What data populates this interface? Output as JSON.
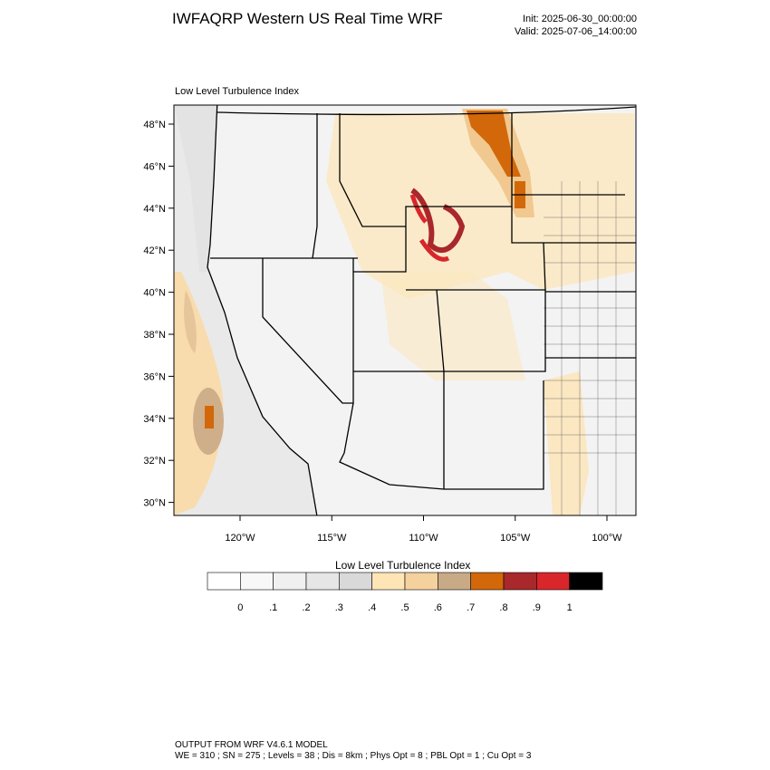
{
  "header": {
    "title": "IWFAQRP Western US Real Time WRF",
    "init": "Init: 2025-06-30_00:00:00",
    "valid": "Valid: 2025-07-06_14:00:00"
  },
  "map": {
    "title": "Low Level Turbulence Index",
    "lat_labels": [
      "48°N",
      "46°N",
      "44°N",
      "42°N",
      "40°N",
      "38°N",
      "36°N",
      "34°N",
      "32°N",
      "30°N"
    ],
    "lon_labels": [
      "120°W",
      "115°W",
      "110°W",
      "105°W",
      "100°W"
    ]
  },
  "colorbar": {
    "title": "Low Level Turbulence Index",
    "colors": [
      "#ffffff",
      "#f8f8f8",
      "#f0f0f0",
      "#e6e6e6",
      "#d9d9d9",
      "#fee5b6",
      "#f5d19e",
      "#c9aa87",
      "#d2680a",
      "#a8282b",
      "#d9262b",
      "#000000"
    ],
    "labels": [
      "0",
      ".1",
      ".2",
      ".3",
      ".4",
      ".5",
      ".6",
      ".7",
      ".8",
      ".9",
      "1"
    ]
  },
  "footer": {
    "line1": "OUTPUT FROM WRF V4.6.1 MODEL",
    "line2": "WE = 310 ; SN = 275 ; Levels = 38 ; Dis = 8km ; Phys Opt = 8 ; PBL Opt = 1 ; Cu Opt = 3"
  }
}
